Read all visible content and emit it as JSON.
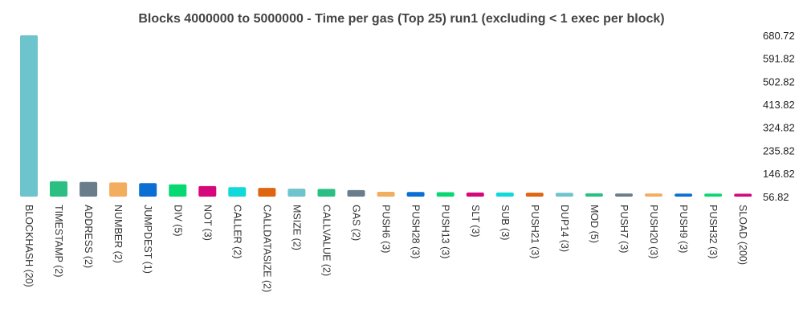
{
  "chart_data": {
    "type": "bar",
    "title": "Blocks 4000000 to 5000000 - Time per gas (Top 25)⁠ run1 (excluding < 1 exec per block)",
    "xlabel": "",
    "ylabel": "",
    "ylim": [
      56.82,
      680.72
    ],
    "yaxis_position": "right",
    "grid": false,
    "legend": "none",
    "y_ticks": [
      "680.72",
      "591.82",
      "502.82",
      "413.82",
      "324.82",
      "235.82",
      "146.82",
      "56.82"
    ],
    "categories": [
      "BLOCKHASH (20)",
      "TIMESTAMP (2)",
      "ADDRESS (2)",
      "NUMBER (2)",
      "JUMPDEST (1)",
      "DIV (5)",
      "NOT (3)",
      "CALLER (2)",
      "CALLDATASIZE (2)",
      "MSIZE (2)",
      "CALLVALUE (2)",
      "GAS (2)",
      "PUSH6 (3)",
      "PUSH28 (3)",
      "PUSH13 (3)",
      "SLT (3)",
      "SUB (3)",
      "PUSH21 (3)",
      "DUP14 (3)",
      "MOD (5)",
      "PUSH7 (3)",
      "PUSH20 (3)",
      "PUSH9 (3)",
      "PUSH32 (3)",
      "SLOAD (200)"
    ],
    "values": [
      680.72,
      116.0,
      113.5,
      111.5,
      109.0,
      104.0,
      97.5,
      93.0,
      90.5,
      87.5,
      86.5,
      82.0,
      75.5,
      74.5,
      74.0,
      72.5,
      72.5,
      72.0,
      71.5,
      69.5,
      69.0,
      69.0,
      68.5,
      68.5,
      68.0
    ],
    "colors": [
      "#6ec4cd",
      "#2bbf84",
      "#6a7d8b",
      "#f3ad5f",
      "#0a6fd3",
      "#06d872",
      "#d6077a",
      "#0fd9d9",
      "#e0650f",
      "#6ec4cd",
      "#2bbf84",
      "#6a7d8b",
      "#f3ad5f",
      "#0a6fd3",
      "#06d872",
      "#d6077a",
      "#0fd9d9",
      "#e0650f",
      "#6ec4cd",
      "#2bbf84",
      "#6a7d8b",
      "#f3ad5f",
      "#0a6fd3",
      "#06d872",
      "#d6077a"
    ]
  }
}
